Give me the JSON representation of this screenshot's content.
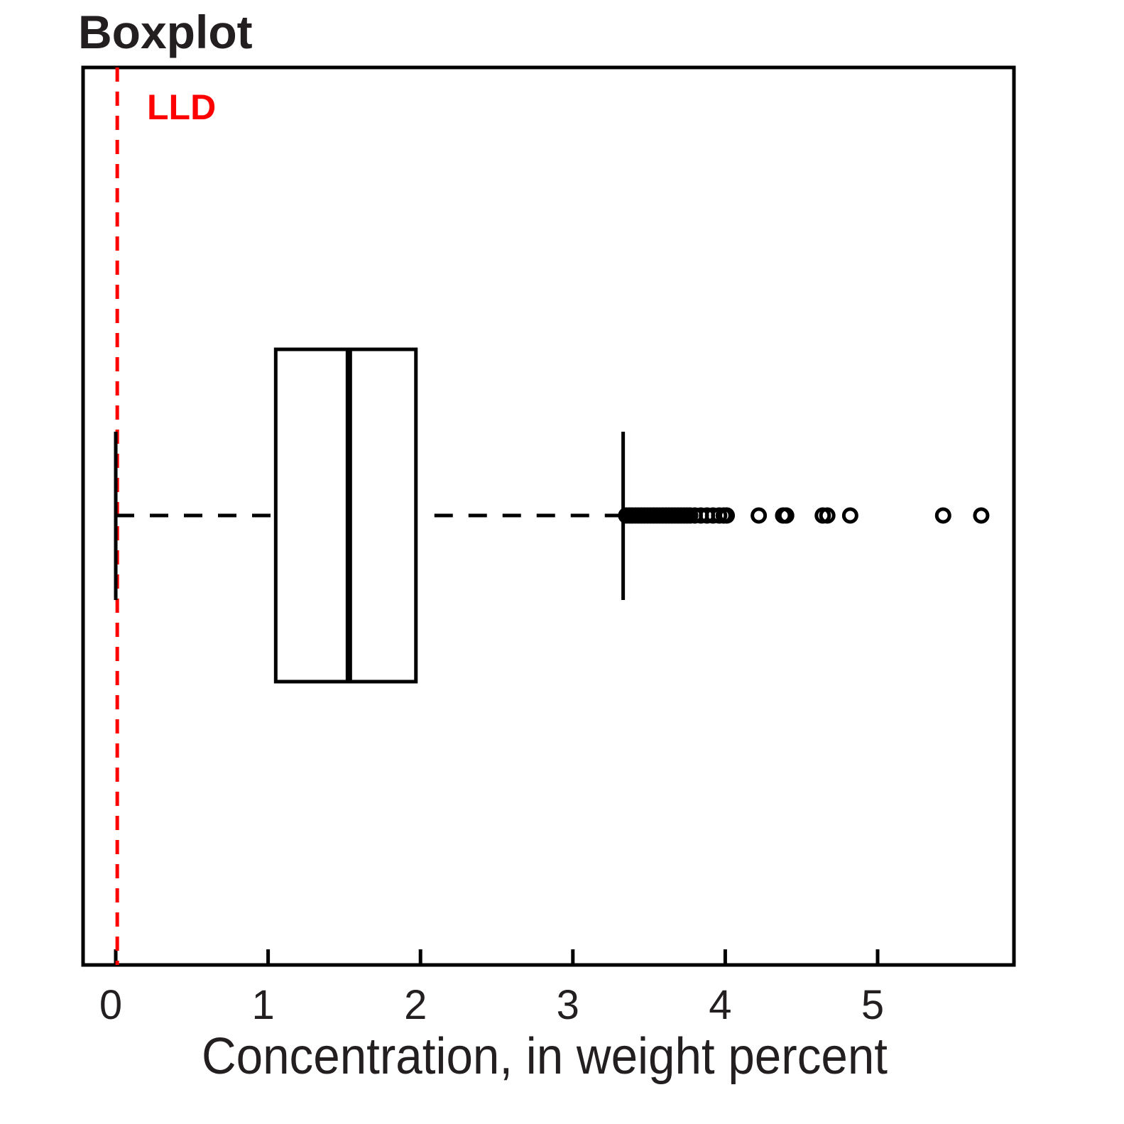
{
  "chart_data": {
    "type": "boxplot",
    "title": "Boxplot",
    "subtitle": "",
    "xlabel": "Concentration, in weight percent",
    "ylabel": "",
    "xlim": [
      -0.2,
      5.9
    ],
    "x_ticks": [
      0,
      1,
      2,
      3,
      4,
      5
    ],
    "x_tick_labels": [
      "0",
      "1",
      "2",
      "3",
      "4",
      "5"
    ],
    "orientation": "horizontal",
    "grid": false,
    "box": {
      "whisker_low": 0.0,
      "q1": 1.05,
      "median": 1.53,
      "q3": 1.97,
      "whisker_high": 3.33
    },
    "outliers": [
      3.35,
      3.37,
      3.39,
      3.41,
      3.43,
      3.45,
      3.47,
      3.49,
      3.51,
      3.53,
      3.55,
      3.57,
      3.59,
      3.61,
      3.63,
      3.65,
      3.67,
      3.69,
      3.71,
      3.73,
      3.75,
      3.77,
      3.8,
      3.84,
      3.88,
      3.92,
      3.96,
      3.99,
      4.01,
      4.22,
      4.38,
      4.4,
      4.64,
      4.67,
      4.82,
      5.43,
      5.68
    ],
    "reference_line": {
      "label": "LLD",
      "x": 0.01,
      "color": "#ff0000",
      "style": "dashed"
    },
    "colors": {
      "box": "#000000",
      "text": "#231f20",
      "reference": "#ff0000"
    }
  }
}
